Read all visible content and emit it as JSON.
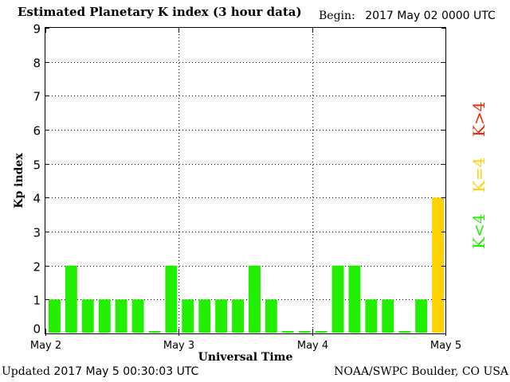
{
  "header": {
    "title": "Estimated Planetary K index (3 hour data)",
    "begin_label": "Begin:",
    "begin_value": "2017 May 02 0000 UTC"
  },
  "footer": {
    "updated_label": "Updated",
    "updated_value": "2017 May  5 00:30:03 UTC",
    "credit": "NOAA/SWPC Boulder, CO USA"
  },
  "legend": {
    "low": "K<4",
    "mid": "K=4",
    "high": "K>4",
    "low_color": "#22ee00",
    "mid_color": "#ffd200",
    "high_color": "#ff2200"
  },
  "chart_data": {
    "type": "bar",
    "title": "Estimated Planetary K index (3 hour data)",
    "xlabel": "Universal Time",
    "ylabel": "Kp index",
    "ylim": [
      0,
      9
    ],
    "yticks": [
      0,
      1,
      2,
      3,
      4,
      5,
      6,
      7,
      8,
      9
    ],
    "xticks": [
      "May 2",
      "May 3",
      "May 4",
      "May 5"
    ],
    "grid": true,
    "values": [
      1,
      2,
      1,
      1,
      1,
      1,
      0,
      2,
      1,
      1,
      1,
      1,
      2,
      1,
      0,
      0,
      0,
      2,
      2,
      1,
      1,
      0,
      1,
      4
    ]
  }
}
